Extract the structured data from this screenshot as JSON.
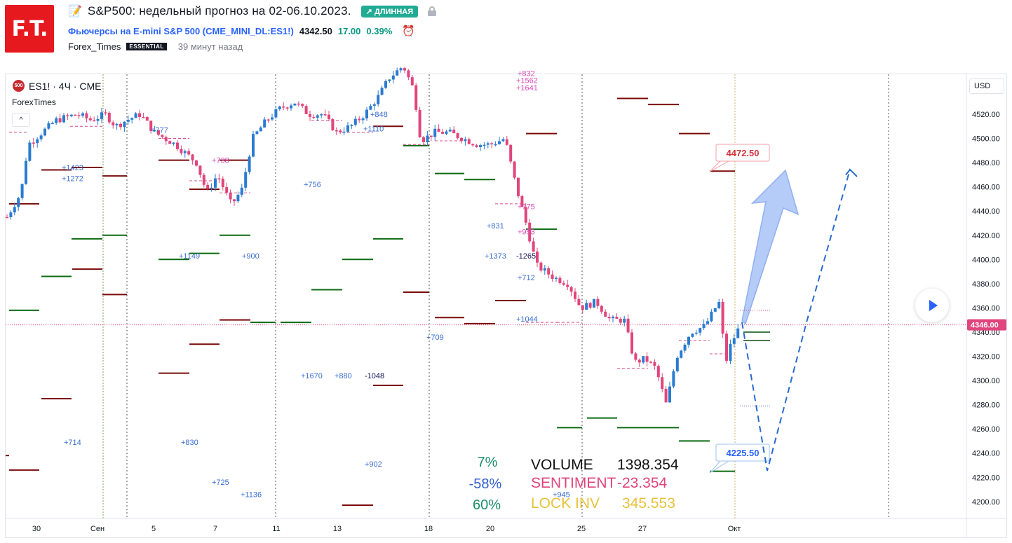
{
  "logo": {
    "text": "F.T."
  },
  "header": {
    "title": "S&P500: недельный прогноз на 02-06.10.2023.",
    "badge": "↗ ДЛИННАЯ",
    "symbol_link": "Фьючерсы на E-mini S&P 500",
    "symbol_code": "CME_MINI_DL:ES1!",
    "price": "4342.50",
    "change": "17.00",
    "change_pct": "0.39%",
    "author": "Forex_Times",
    "author_badge": "ESSENTIAL",
    "time_ago": "39 минут назад"
  },
  "legend": {
    "symbol": "ES1! · 4Ч · CME",
    "symbol_badge": "500",
    "indicator_author": "ForexTimes",
    "collapse_glyph": "^"
  },
  "price_axis": {
    "currency": "USD",
    "ticks": [
      "4520.00",
      "4500.00",
      "4480.00",
      "4460.00",
      "4440.00",
      "4420.00",
      "4400.00",
      "4380.00",
      "4360.00",
      "4340.00",
      "4320.00",
      "4300.00",
      "4280.00",
      "4260.00",
      "4240.00",
      "4220.00",
      "4200.00"
    ],
    "current_price": "4346.00"
  },
  "time_axis": {
    "labels": [
      "30",
      "Сен",
      "5",
      "7",
      "11",
      "13",
      "18",
      "20",
      "25",
      "27",
      "Окт"
    ]
  },
  "callouts": {
    "target_high": "4472.50",
    "target_low": "4225.50"
  },
  "stats": {
    "pct1": "7%",
    "pct2": "-58%",
    "pct3": "60%",
    "volume_label": "VOLUME",
    "volume_value": "1398.354",
    "sentiment_label": "SENTIMENT",
    "sentiment_value": "-23.354",
    "lock_label": "LOCK INV",
    "lock_value": "345.553"
  },
  "annotations": [
    {
      "text": "+1423",
      "color": "blue"
    },
    {
      "text": "+1272",
      "color": "blue"
    },
    {
      "text": "+777",
      "color": "blue"
    },
    {
      "text": "+738",
      "color": "pink"
    },
    {
      "text": "+1149",
      "color": "blue"
    },
    {
      "text": "+900",
      "color": "blue"
    },
    {
      "text": "+756",
      "color": "blue"
    },
    {
      "text": "+1110",
      "color": "blue"
    },
    {
      "text": "+848",
      "color": "blue"
    },
    {
      "text": "+832",
      "color": "pink"
    },
    {
      "text": "+1562",
      "color": "pink"
    },
    {
      "text": "+1641",
      "color": "pink"
    },
    {
      "text": "+775",
      "color": "pink"
    },
    {
      "text": "+831",
      "color": "blue"
    },
    {
      "text": "+953",
      "color": "pink"
    },
    {
      "text": "+1373",
      "color": "blue"
    },
    {
      "text": "-1265",
      "color": "navy"
    },
    {
      "text": "+712",
      "color": "blue"
    },
    {
      "text": "+1044",
      "color": "blue"
    },
    {
      "text": "+709",
      "color": "blue"
    },
    {
      "text": "+1670",
      "color": "blue"
    },
    {
      "text": "+880",
      "color": "blue"
    },
    {
      "text": "-1048",
      "color": "navy"
    },
    {
      "text": "+714",
      "color": "blue"
    },
    {
      "text": "+830",
      "color": "blue"
    },
    {
      "text": "+902",
      "color": "blue"
    },
    {
      "text": "+725",
      "color": "blue"
    },
    {
      "text": "+1136",
      "color": "blue"
    },
    {
      "text": "+945",
      "color": "blue"
    }
  ],
  "colors": {
    "up": "#2a7bd1",
    "down": "#e0457b",
    "level_red": "#7a0a0a",
    "level_green": "#0b6b12",
    "accent": "#2962ff"
  }
}
